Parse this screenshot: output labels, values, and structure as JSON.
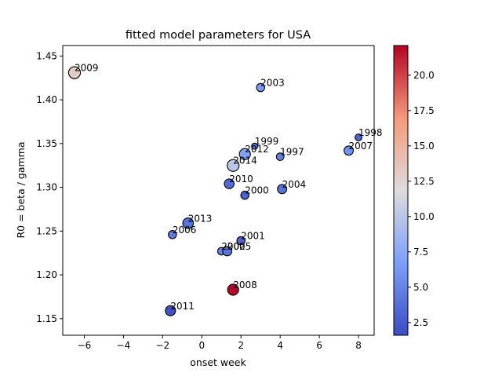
{
  "chart_data": {
    "type": "scatter",
    "title": "fitted model parameters for USA",
    "xlabel": "onset week",
    "ylabel": "R0 = beta / gamma",
    "xlim": [
      -7.1,
      8.8
    ],
    "ylim": [
      1.131,
      1.462
    ],
    "xticks": [
      -6,
      -4,
      -2,
      0,
      2,
      4,
      6,
      8
    ],
    "yticks": [
      1.15,
      1.2,
      1.25,
      1.3,
      1.35,
      1.4,
      1.45
    ],
    "grid": false,
    "colorbar": {
      "range": [
        1.6,
        22.1
      ],
      "ticks": [
        2.5,
        5.0,
        7.5,
        10.0,
        12.5,
        15.0,
        17.5,
        20.0
      ],
      "colormap": "coolwarm"
    },
    "points": [
      {
        "label": "1997",
        "x": 4.0,
        "y": 1.335,
        "c": 5.0,
        "s": 60
      },
      {
        "label": "1998",
        "x": 8.0,
        "y": 1.357,
        "c": 3.0,
        "s": 50
      },
      {
        "label": "1999",
        "x": 2.7,
        "y": 1.347,
        "c": 4.0,
        "s": 40
      },
      {
        "label": "2000",
        "x": 2.2,
        "y": 1.291,
        "c": 3.0,
        "s": 70
      },
      {
        "label": "2001",
        "x": 2.0,
        "y": 1.239,
        "c": 3.0,
        "s": 70
      },
      {
        "label": "2002",
        "x": 1.0,
        "y": 1.227,
        "c": 5.0,
        "s": 60
      },
      {
        "label": "2003",
        "x": 3.0,
        "y": 1.414,
        "c": 6.5,
        "s": 70
      },
      {
        "label": "2004",
        "x": 4.1,
        "y": 1.298,
        "c": 4.0,
        "s": 90
      },
      {
        "label": "2005",
        "x": 1.3,
        "y": 1.227,
        "c": 4.0,
        "s": 90
      },
      {
        "label": "2006",
        "x": -1.5,
        "y": 1.246,
        "c": 4.5,
        "s": 70
      },
      {
        "label": "2007",
        "x": 7.5,
        "y": 1.342,
        "c": 6.0,
        "s": 90
      },
      {
        "label": "2008",
        "x": 1.6,
        "y": 1.183,
        "c": 22.0,
        "s": 130
      },
      {
        "label": "2009",
        "x": -6.5,
        "y": 1.431,
        "c": 13.0,
        "s": 150
      },
      {
        "label": "2010",
        "x": 1.4,
        "y": 1.304,
        "c": 3.5,
        "s": 100
      },
      {
        "label": "2011",
        "x": -1.6,
        "y": 1.159,
        "c": 2.0,
        "s": 110
      },
      {
        "label": "2012",
        "x": 2.2,
        "y": 1.338,
        "c": 7.0,
        "s": 130
      },
      {
        "label": "2013",
        "x": -0.7,
        "y": 1.259,
        "c": 4.0,
        "s": 120
      },
      {
        "label": "2014",
        "x": 1.6,
        "y": 1.325,
        "c": 10.0,
        "s": 150
      }
    ]
  }
}
